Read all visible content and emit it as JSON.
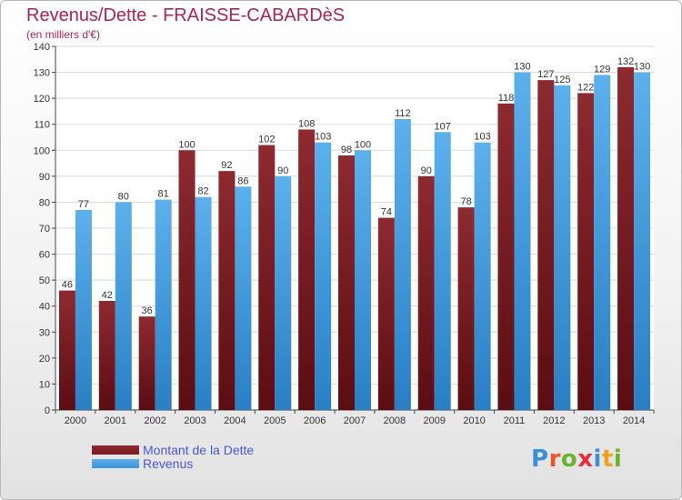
{
  "title": "Revenus/Dette - FRAISSE-CABARDèS",
  "subtitle": "(en milliers d'€)",
  "colors": {
    "dette": "#7a1a22",
    "revenus": "#3a94d8",
    "title": "#b02357",
    "legend_text": "#4a55d8"
  },
  "chart_data": {
    "type": "bar",
    "title": "Revenus/Dette - FRAISSE-CABARDèS",
    "ylabel": "(en milliers d'€)",
    "ylim": [
      0,
      140
    ],
    "yticks": [
      0,
      10,
      20,
      30,
      40,
      50,
      60,
      70,
      80,
      90,
      100,
      110,
      120,
      130,
      140
    ],
    "grid": true,
    "legend_position": "bottom-left",
    "categories": [
      "2000",
      "2001",
      "2002",
      "2003",
      "2004",
      "2005",
      "2006",
      "2007",
      "2008",
      "2009",
      "2010",
      "2011",
      "2012",
      "2013",
      "2014"
    ],
    "series": [
      {
        "name": "Montant de la Dette",
        "values": [
          46,
          42,
          36,
          100,
          92,
          102,
          108,
          98,
          74,
          90,
          78,
          118,
          127,
          122,
          132
        ]
      },
      {
        "name": "Revenus",
        "values": [
          77,
          80,
          81,
          82,
          86,
          90,
          103,
          100,
          112,
          107,
          103,
          130,
          125,
          129,
          130
        ]
      }
    ]
  },
  "legend": {
    "dette_label": "Montant de la Dette",
    "revenus_label": "Revenus"
  },
  "logo": {
    "letters": [
      "P",
      "r",
      "o",
      "x",
      "i",
      "t",
      "i"
    ],
    "colors": [
      "#3a8fd6",
      "#e8542b",
      "#6ab42c",
      "#e82a3a",
      "#3a8fd6",
      "#f0a21e",
      "#6ab42c"
    ]
  }
}
